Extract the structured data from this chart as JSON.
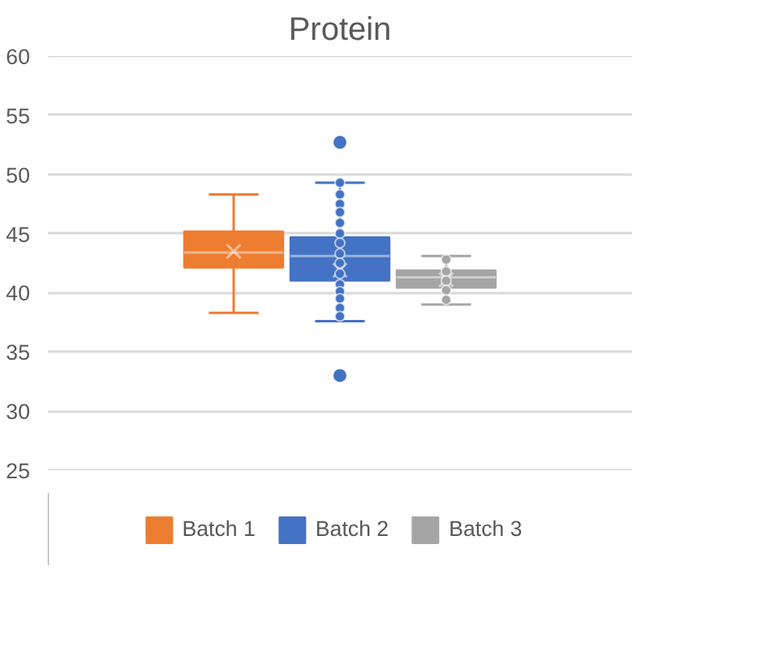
{
  "chart_data": {
    "type": "box",
    "title": "Protein",
    "categories": [
      null
    ],
    "ylim": [
      25,
      60
    ],
    "yticks": [
      25,
      30,
      35,
      40,
      45,
      50,
      55,
      60
    ],
    "grid": "y",
    "legend": "bottom",
    "tick_labels": "y",
    "series": [
      {
        "name": "Batch 1",
        "color": "#ed7d31",
        "boxes": [
          {
            "low": 38.3,
            "q1": 42.1,
            "median": 43.4,
            "q3": 45.2,
            "high": 48.3,
            "mean": 43.5
          }
        ]
      },
      {
        "name": "Batch 2",
        "color": "#4472c4",
        "boxes": [
          {
            "low": 37.6,
            "q1": 41.0,
            "median": 43.1,
            "q3": 44.7,
            "high": 49.3,
            "mean": 41.9,
            "outliers": [
              52.7,
              33.0
            ]
          }
        ]
      },
      {
        "name": "Batch 3",
        "color": "#a5a5a5",
        "boxes": [
          {
            "low": 39.0,
            "q1": 40.4,
            "median": 41.3,
            "q3": 41.9,
            "high": 43.1,
            "mean": 41.1
          }
        ]
      },
      {
        "type": "scatter",
        "color": "#4472c4",
        "marker": "circle",
        "values": [
          49.3
        ]
      },
      {
        "type": "scatter",
        "color": "#4472c4",
        "marker": "circle",
        "values": [
          48.3
        ]
      },
      {
        "type": "scatter",
        "color": "#4472c4",
        "marker": "circle",
        "values": [
          47.5
        ]
      },
      {
        "type": "scatter",
        "color": "#4472c4",
        "marker": "circle",
        "values": [
          46.8
        ]
      },
      {
        "type": "scatter",
        "color": "#4472c4",
        "marker": "circle",
        "values": [
          45.9
        ]
      },
      {
        "type": "scatter",
        "color": "#4472c4",
        "marker": "circle",
        "values": [
          45.0
        ]
      },
      {
        "type": "scatter",
        "color": "#4472c4",
        "marker": "circle",
        "values": [
          44.2
        ]
      },
      {
        "type": "scatter",
        "color": "#4472c4",
        "marker": "circle",
        "values": [
          43.3
        ]
      },
      {
        "type": "scatter",
        "color": "#4472c4",
        "marker": "circle",
        "values": [
          42.5
        ]
      },
      {
        "type": "scatter",
        "color": "#4472c4",
        "marker": "circle",
        "values": [
          41.6
        ]
      },
      {
        "type": "scatter",
        "color": "#4472c4",
        "marker": "circle",
        "values": [
          40.7
        ]
      },
      {
        "type": "scatter",
        "color": "#4472c4",
        "marker": "circle",
        "values": [
          40.1
        ]
      },
      {
        "type": "scatter",
        "color": "#4472c4",
        "marker": "circle",
        "values": [
          39.5
        ]
      },
      {
        "type": "scatter",
        "color": "#4472c4",
        "marker": "circle",
        "values": [
          38.7
        ]
      },
      {
        "type": "scatter",
        "color": "#4472c4",
        "marker": "circle",
        "values": [
          38.0
        ]
      },
      {
        "type": "scatter",
        "color": "#a5a5a5",
        "marker": "circle",
        "values": [
          42.8
        ]
      },
      {
        "type": "scatter",
        "color": "#a5a5a5",
        "marker": "circle",
        "values": [
          41.8
        ]
      },
      {
        "type": "scatter",
        "color": "#a5a5a5",
        "marker": "circle",
        "values": [
          41.0
        ]
      },
      {
        "type": "scatter",
        "color": "#a5a5a5",
        "marker": "circle",
        "values": [
          40.2
        ]
      },
      {
        "type": "scatter",
        "color": "#a5a5a5",
        "marker": "circle",
        "values": [
          39.4
        ]
      }
    ]
  }
}
